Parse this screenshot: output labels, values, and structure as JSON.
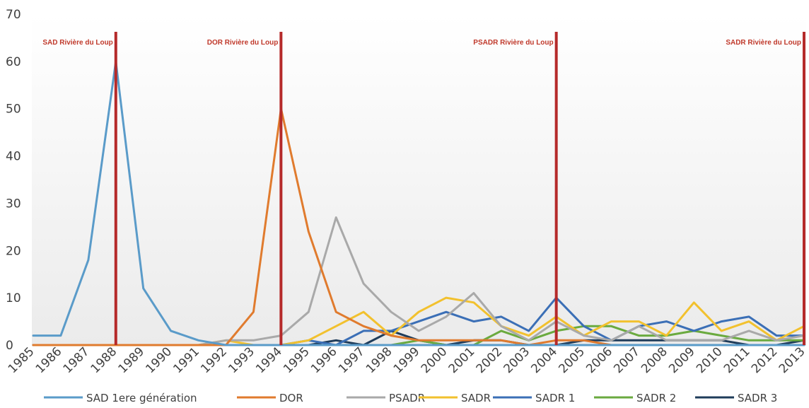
{
  "chart_data": {
    "type": "line",
    "title": "",
    "xlabel": "",
    "ylabel": "",
    "ylim": [
      0,
      70
    ],
    "yticks": [
      0,
      10,
      20,
      30,
      40,
      50,
      60,
      70
    ],
    "grid": false,
    "legend_position": "bottom",
    "x": [
      "1985",
      "1986",
      "1987",
      "1988",
      "1989",
      "1990",
      "1991",
      "1992",
      "1993",
      "1994",
      "1995",
      "1996",
      "1997",
      "1998",
      "1999",
      "2000",
      "2001",
      "2002",
      "2003",
      "2004",
      "2005",
      "2006",
      "2007",
      "2008",
      "2009",
      "2010",
      "2011",
      "2012",
      "2013"
    ],
    "series": [
      {
        "name": "SAD 1ere génération",
        "color": "#5a9bc9",
        "values": [
          2,
          2,
          18,
          60,
          12,
          3,
          1,
          0,
          0,
          0,
          0,
          0,
          0,
          0,
          0,
          0,
          0,
          0,
          0,
          0,
          0,
          0,
          0,
          0,
          0,
          0,
          0,
          0,
          0
        ]
      },
      {
        "name": "DOR",
        "color": "#e07b2e",
        "values": [
          0,
          0,
          0,
          0,
          0,
          0,
          0,
          0,
          7,
          50,
          24,
          7,
          4,
          2,
          1,
          1,
          1,
          1,
          0,
          1,
          1,
          0,
          0,
          0,
          0,
          0,
          0,
          0,
          0
        ]
      },
      {
        "name": "PSADR",
        "color": "#a9a9a9",
        "values": [
          0,
          0,
          0,
          0,
          0,
          0,
          0,
          1,
          1,
          2,
          7,
          27,
          13,
          7,
          3,
          6,
          11,
          4,
          1,
          5,
          2,
          1,
          4,
          1,
          1,
          1,
          3,
          1,
          2
        ]
      },
      {
        "name": "SADR",
        "color": "#f2c12e",
        "values": [
          0,
          0,
          0,
          0,
          0,
          0,
          0,
          1,
          0,
          0,
          1,
          4,
          7,
          2,
          7,
          10,
          9,
          4,
          2,
          6,
          2,
          5,
          5,
          2,
          9,
          3,
          5,
          1,
          4
        ]
      },
      {
        "name": "SADR 1",
        "color": "#3b6fb6",
        "values": [
          0,
          0,
          0,
          0,
          0,
          0,
          0,
          0,
          0,
          0,
          1,
          0,
          3,
          3,
          5,
          7,
          5,
          6,
          3,
          10,
          4,
          1,
          4,
          5,
          3,
          5,
          6,
          2,
          2
        ]
      },
      {
        "name": "SADR 2",
        "color": "#6aaa3f",
        "values": [
          0,
          0,
          0,
          0,
          0,
          0,
          0,
          0,
          0,
          0,
          0,
          0,
          0,
          0,
          1,
          0,
          0,
          3,
          1,
          3,
          4,
          4,
          2,
          2,
          3,
          2,
          1,
          1,
          1
        ]
      },
      {
        "name": "SADR 3",
        "color": "#1f3c5a",
        "values": [
          0,
          0,
          0,
          0,
          0,
          0,
          0,
          0,
          0,
          0,
          0,
          1,
          0,
          3,
          1,
          0,
          1,
          1,
          0,
          0,
          1,
          1,
          1,
          1,
          1,
          1,
          0,
          0,
          1
        ]
      }
    ],
    "events": [
      {
        "year": "1988",
        "label": "SAD Rivière du Loup",
        "color": "#b52a2a"
      },
      {
        "year": "1994",
        "label": "DOR Rivière du Loup",
        "color": "#b52a2a"
      },
      {
        "year": "2004",
        "label": "PSADR Rivière du Loup",
        "color": "#b52a2a"
      },
      {
        "year": "2013",
        "label": "SADR Rivière du Loup",
        "color": "#b52a2a"
      }
    ]
  }
}
